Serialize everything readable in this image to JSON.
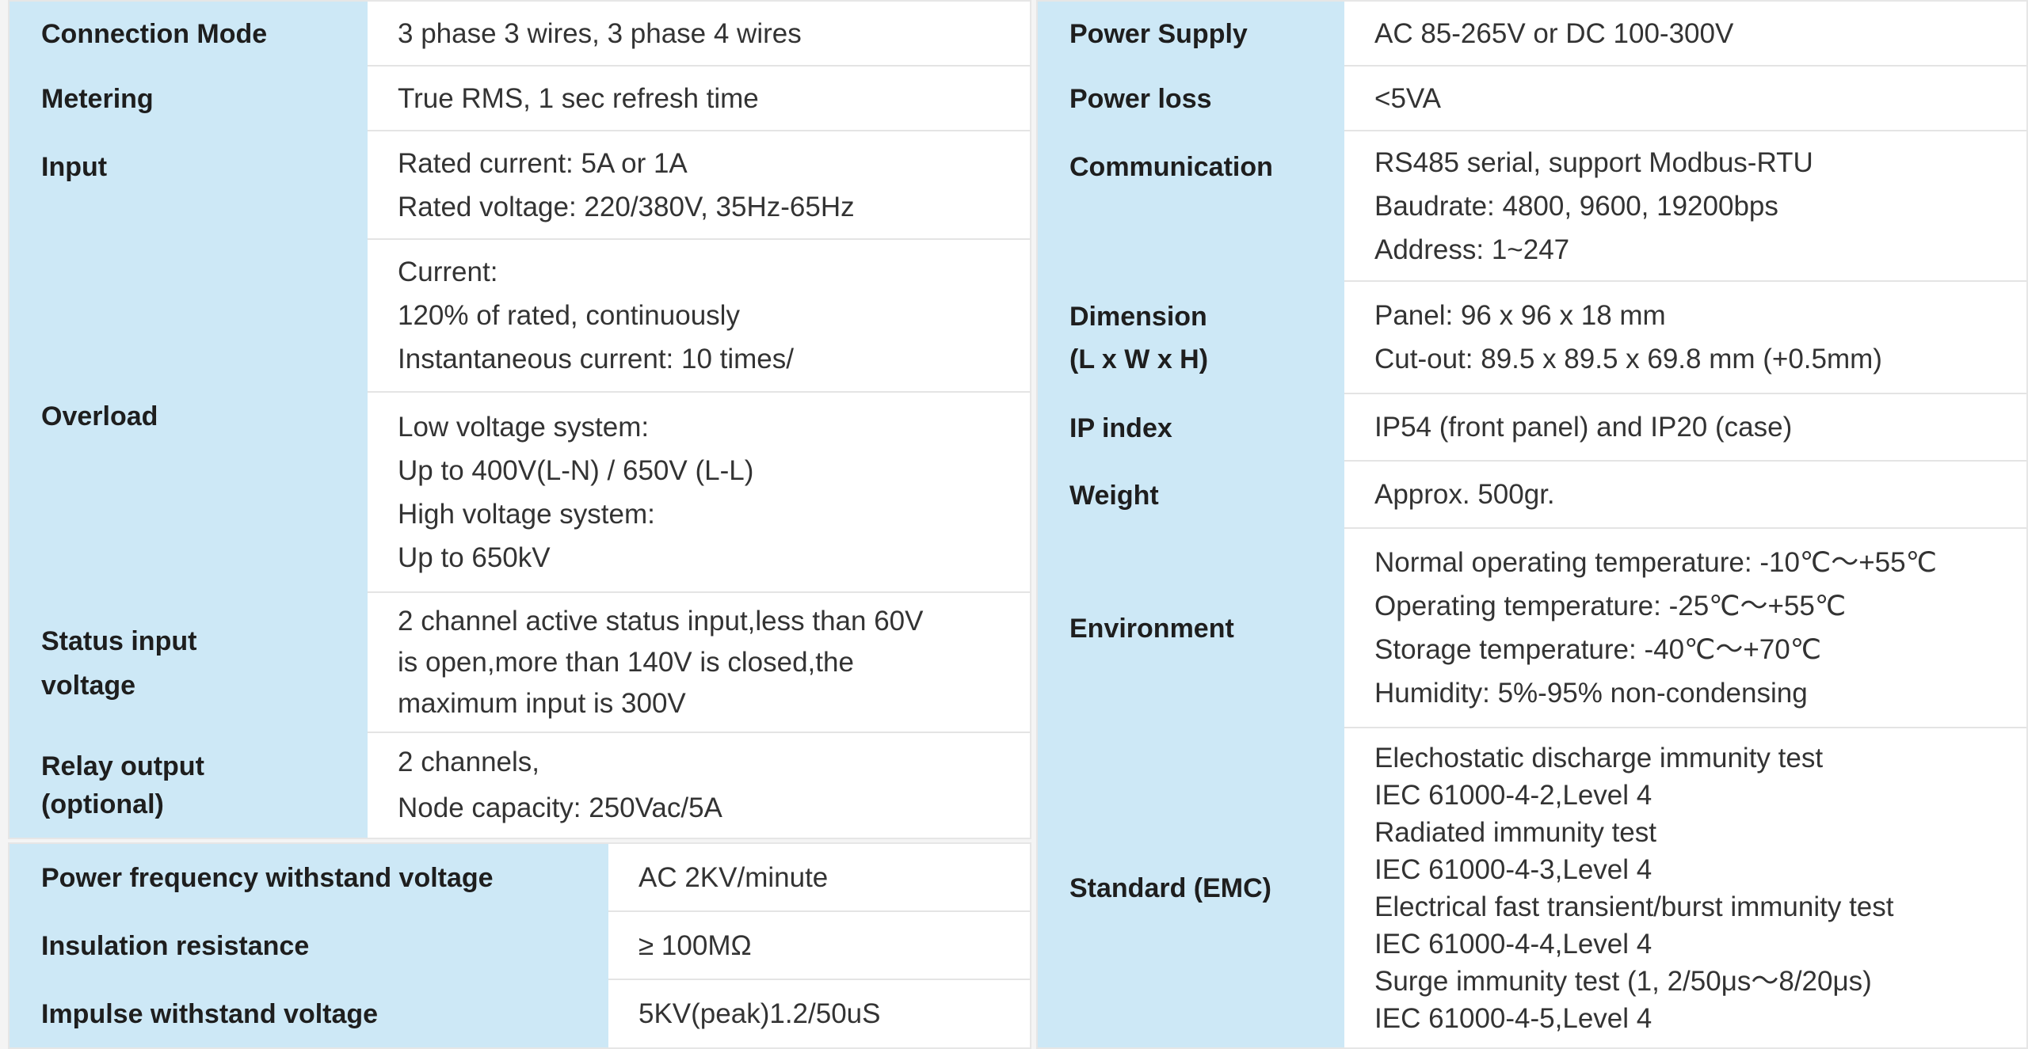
{
  "left": {
    "connection_mode": {
      "label": "Connection Mode",
      "values": [
        "3 phase 3 wires, 3 phase 4 wires"
      ]
    },
    "metering": {
      "label": "Metering",
      "values": [
        "True RMS, 1 sec refresh time"
      ]
    },
    "input": {
      "label": "Input",
      "values": [
        "Rated current: 5A or 1A",
        "Rated voltage: 220/380V, 35Hz-65Hz"
      ]
    },
    "overload": {
      "label": "Overload",
      "current": [
        "Current:",
        "120% of rated, continuously",
        "Instantaneous current: 10 times/"
      ],
      "voltage": [
        "Low voltage system:",
        "Up to 400V(L-N) / 650V (L-L)",
        "High voltage system:",
        "Up to 650kV"
      ]
    },
    "status_input": {
      "label": [
        "Status input",
        "voltage"
      ],
      "values": [
        "2 channel active status input,less than 60V",
        "is open,more than 140V is closed,the",
        "maximum input is 300V"
      ]
    },
    "relay_output": {
      "label": [
        "Relay output",
        "(optional)"
      ],
      "values": [
        "2 channels,",
        "Node capacity: 250Vac/5A"
      ]
    }
  },
  "bottom": [
    {
      "label": "Power frequency withstand voltage",
      "value": "AC  2KV/minute"
    },
    {
      "label": "Insulation resistance",
      "value": "≥ 100MΩ"
    },
    {
      "label": "Impulse withstand voltage",
      "value": "5KV(peak)1.2/50uS"
    }
  ],
  "right": {
    "power_supply": {
      "label": "Power Supply",
      "values": [
        "AC 85-265V  or DC 100-300V"
      ]
    },
    "power_loss": {
      "label": "Power loss",
      "values": [
        "<5VA"
      ]
    },
    "communication": {
      "label": "Communication",
      "values": [
        "RS485 serial, support Modbus-RTU",
        "Baudrate: 4800, 9600, 19200bps",
        "Address: 1~247"
      ]
    },
    "dimension": {
      "label": [
        "Dimension",
        "(L x W x H)"
      ],
      "values": [
        "Panel: 96 x 96 x 18 mm",
        "Cut-out: 89.5 x 89.5 x 69.8 mm (+0.5mm)"
      ]
    },
    "ip_index": {
      "label": "IP index",
      "values": [
        "IP54 (front panel) and IP20 (case)"
      ]
    },
    "weight": {
      "label": "Weight",
      "values": [
        "Approx. 500gr."
      ]
    },
    "environment": {
      "label": "Environment",
      "values": [
        "Normal operating temperature: -10℃～+55℃",
        "Operating temperature: -25℃～+55℃",
        "Storage temperature: -40℃～+70℃",
        "Humidity: 5%-95% non-condensing"
      ]
    },
    "standard_emc": {
      "label": "Standard (EMC)",
      "values": [
        "Elechostatic discharge immunity test",
        "IEC 61000-4-2,Level 4",
        "Radiated immunity test",
        "IEC 61000-4-3,Level 4",
        "Electrical fast transient/burst immunity test",
        "IEC 61000-4-4,Level 4",
        "Surge immunity test (1, 2/50μs～8/20μs)",
        "IEC 61000-4-5,Level 4"
      ]
    }
  },
  "colors": {
    "label_bg": "#cde8f6",
    "text": "#1e1e1e"
  }
}
